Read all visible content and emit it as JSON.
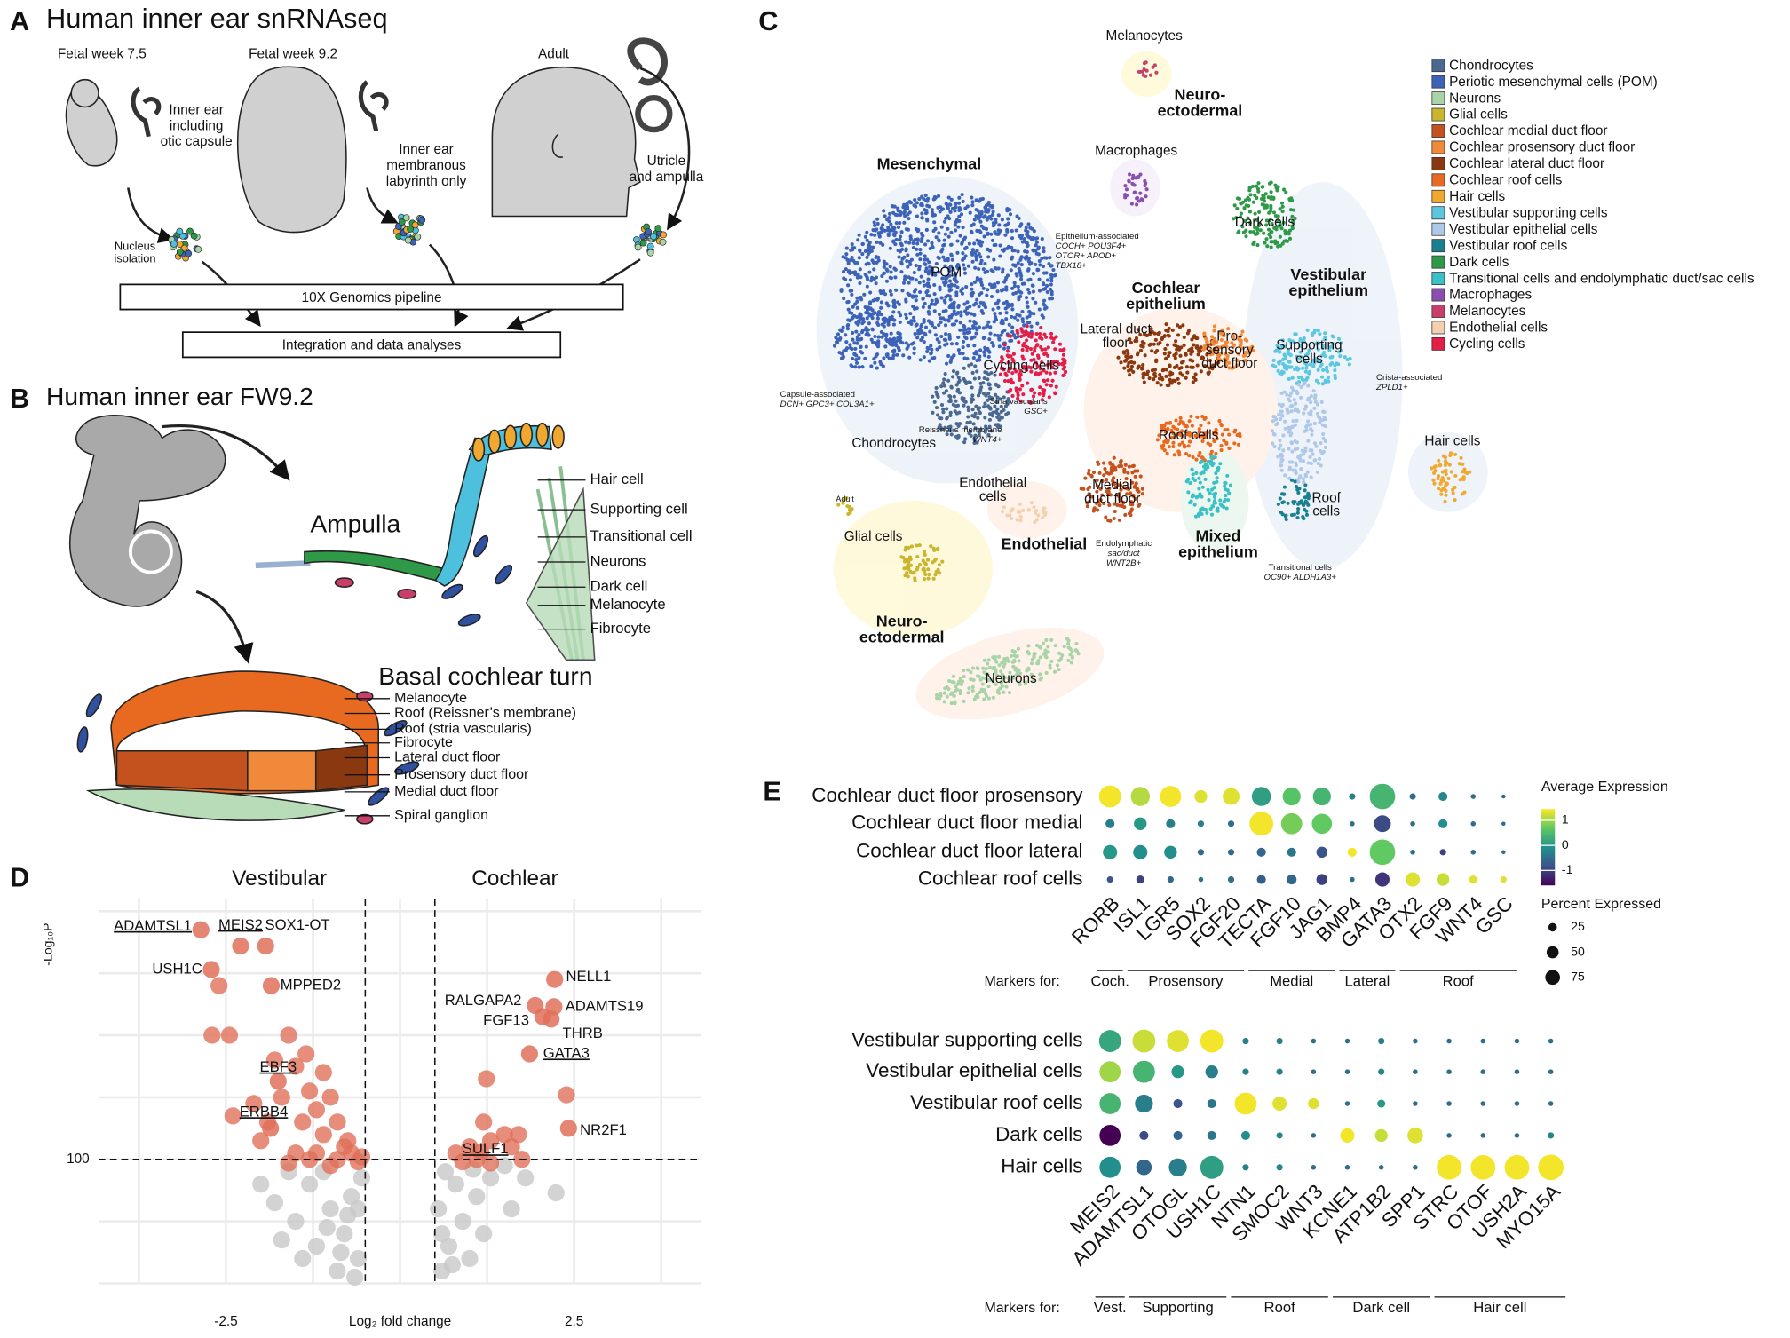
{
  "panel_a": {
    "letter": "A",
    "title": "Human inner ear snRNAseq",
    "stages": [
      "Fetal week 7.5",
      "Fetal week 9.2",
      "Adult"
    ],
    "tissues": [
      [
        "Inner ear",
        "including",
        "otic capsule"
      ],
      [
        "Inner ear",
        "membranous",
        "labyrinth only"
      ],
      [
        "Utricle",
        "and ampulla"
      ]
    ],
    "nucleus": [
      "Nucleus",
      "isolation"
    ],
    "pipeline": "10X Genomics pipeline",
    "integration": "Integration and data analyses"
  },
  "panel_b": {
    "letter": "B",
    "title": "Human inner ear FW9.2",
    "ampulla": "Ampulla",
    "ampulla_labels": [
      "Hair cell",
      "Supporting cell",
      "Transitional cell",
      "Neurons",
      "Dark cell",
      "Melanocyte",
      "Fibrocyte"
    ],
    "cochlea": "Basal cochlear turn",
    "cochlea_labels": [
      "Melanocyte",
      "Roof (Reissner’s membrane)",
      "Roof (stria vascularis)",
      "Fibrocyte",
      "Lateral duct floor",
      "Prosensory duct floor",
      "Medial duct floor",
      "Spiral ganglion"
    ]
  },
  "panel_c": {
    "letter": "C",
    "legend": [
      {
        "name": "Chondrocytes",
        "color": "#4a6890"
      },
      {
        "name": "Periotic mesenchymal cells (POM)",
        "color": "#3d63b8"
      },
      {
        "name": "Neurons",
        "color": "#a8d4a8"
      },
      {
        "name": "Glial cells",
        "color": "#c9b52e"
      },
      {
        "name": "Cochlear medial duct floor",
        "color": "#c4521e"
      },
      {
        "name": "Cochlear prosensory duct floor",
        "color": "#f08a3a"
      },
      {
        "name": "Cochlear lateral duct floor",
        "color": "#8a3810"
      },
      {
        "name": "Cochlear roof cells",
        "color": "#e86a20"
      },
      {
        "name": "Hair cells",
        "color": "#f0a830"
      },
      {
        "name": "Vestibular supporting cells",
        "color": "#5cc8e0"
      },
      {
        "name": "Vestibular epithelial cells",
        "color": "#b0c8e8"
      },
      {
        "name": "Vestibular roof cells",
        "color": "#1a8090"
      },
      {
        "name": "Dark cells",
        "color": "#2e9a48"
      },
      {
        "name": "Transitional cells and endolymphatic duct/sac cells",
        "color": "#3cc0c8"
      },
      {
        "name": "Macrophages",
        "color": "#8a4eb0"
      },
      {
        "name": "Melanocytes",
        "color": "#c8406a"
      },
      {
        "name": "Endothelial cells",
        "color": "#f4d0b0"
      },
      {
        "name": "Cycling cells",
        "color": "#e41e46"
      }
    ],
    "regions": [
      [
        "Mesenchymal"
      ],
      [
        "Cochlear",
        "epithelium"
      ],
      [
        "Vestibular",
        "epithelium"
      ],
      [
        "Neuro-",
        "ectodermal"
      ],
      [
        "Endothelial"
      ],
      [
        "Mixed",
        "epithelium"
      ],
      [
        "Neuro-",
        "ectodermal"
      ]
    ],
    "clusters": [
      [
        "Melanocytes"
      ],
      [
        "Macrophages"
      ],
      [
        "POM"
      ],
      [
        "Cycling cells"
      ],
      [
        "Chondrocytes"
      ],
      [
        "Lateral duct",
        "floor"
      ],
      [
        "Pro-",
        "sensory",
        "duct floor"
      ],
      [
        "Supporting",
        "cells"
      ],
      [
        "Dark cells"
      ],
      [
        "Roof cells"
      ],
      [
        "Medial",
        "duct floor"
      ],
      [
        "Roof",
        "cells"
      ],
      [
        "Hair cells"
      ],
      [
        "Endothelial",
        "cells"
      ],
      [
        "Glial cells"
      ],
      [
        "Neurons"
      ],
      [
        "Adult"
      ]
    ],
    "annotations": [
      [
        "Epithelium-associated",
        "COCH+ POU3F4+",
        "OTOR+ APOD+",
        "TBX18+"
      ],
      [
        "Capsule-associated",
        "DCN+ GPC3+ COL3A1+"
      ],
      [
        "Stria vascularis",
        "GSC+"
      ],
      [
        "Reissner’s membrane",
        "WNT4+"
      ],
      [
        "Endolymphatic",
        "sac/duct",
        "WNT2B+"
      ],
      [
        "Transitional cells",
        "OC90+ ALDH1A3+"
      ],
      [
        "Crista-associated",
        "ZPLD1+"
      ]
    ]
  },
  "chart_data": [
    {
      "type": "scatter",
      "letter": "D",
      "groups": [
        "Vestibular",
        "Cochlear"
      ],
      "xlabel": "Log₂ fold change",
      "ylabel": "-Log₁₀P",
      "xlim": [
        -4.33,
        4.33
      ],
      "ylim": [
        0,
        310
      ],
      "xticks": [
        -2.5,
        2.5
      ],
      "yticks": [
        100
      ],
      "xgrid": [
        -3.75,
        -2.5,
        -1.25,
        0,
        1.25,
        2.5,
        3.75
      ],
      "ygrid": [
        0,
        50,
        100,
        150,
        200,
        250,
        300
      ],
      "thresholds": {
        "x": [
          -0.5,
          0.5
        ],
        "y": 100
      },
      "not_significant": {
        "color": "#c8c8c8",
        "x": [
          -0.6,
          -0.8,
          -1.0,
          -1.3,
          -1.6,
          -0.7,
          -0.9,
          -1.2,
          -1.5,
          -1.8,
          -0.55,
          -1.1,
          -1.4,
          -1.7,
          -2.0,
          -0.65,
          -0.75,
          -1.05,
          -0.6,
          -0.85,
          0.6,
          0.7,
          0.9,
          1.1,
          1.3,
          1.5,
          0.55,
          0.8,
          1.0,
          1.2,
          1.6,
          2.24,
          1.8,
          0.65,
          0.75,
          1.05,
          0.6
        ],
        "y": [
          20,
          40,
          60,
          80,
          90,
          70,
          10,
          30,
          50,
          65,
          85,
          90,
          20,
          35,
          80,
          5,
          55,
          45,
          60,
          25,
          10,
          30,
          50,
          70,
          85,
          95,
          60,
          80,
          20,
          40,
          60,
          73,
          85,
          90,
          15,
          92,
          40
        ]
      },
      "significant": {
        "color": "#e0705a",
        "x": [
          -2.6,
          -2.45,
          -2.7,
          -1.8,
          -1.6,
          -1.5,
          -1.3,
          -1.2,
          -1.0,
          -0.9,
          -1.1,
          -1.4,
          -0.8,
          -0.7,
          -0.9,
          -1.2,
          -1.5,
          -1.9,
          -2.1,
          -1.0,
          -0.6,
          -0.55,
          -1.3,
          -1.6,
          -2.0,
          -2.4,
          -1.7,
          -0.75,
          -1.1,
          -1.35,
          1.0,
          1.1,
          1.3,
          1.5,
          0.8,
          0.9,
          1.3,
          1.6,
          1.75,
          1.2,
          1.7,
          1.24,
          2.39
        ],
        "y": [
          240,
          200,
          200,
          180,
          200,
          175,
          155,
          140,
          150,
          130,
          120,
          130,
          110,
          105,
          100,
          105,
          105,
          130,
          145,
          95,
          98,
          102,
          100,
          97,
          115,
          135,
          150,
          115,
          170,
          185,
          110,
          100,
          115,
          120,
          105,
          98,
          97,
          110,
          100,
          130,
          120,
          165,
          152
        ]
      },
      "labeled": [
        {
          "gene": "ADAMTSL1",
          "x": -2.86,
          "y": 285
        },
        {
          "gene": "MEIS2",
          "x": -2.29,
          "y": 272
        },
        {
          "gene": "SOX1-OT",
          "x": -1.93,
          "y": 272
        },
        {
          "gene": "USH1C",
          "x": -2.71,
          "y": 253
        },
        {
          "gene": "MPPED2",
          "x": -1.85,
          "y": 240
        },
        {
          "gene": "EBF3",
          "x": -1.75,
          "y": 163
        },
        {
          "gene": "ERBB4",
          "x": -1.86,
          "y": 125
        },
        {
          "gene": "NELL1",
          "x": 2.22,
          "y": 245
        },
        {
          "gene": "RALGAPA2",
          "x": 1.94,
          "y": 224
        },
        {
          "gene": "ADAMTS19",
          "x": 2.21,
          "y": 223
        },
        {
          "gene": "FGF13",
          "x": 2.05,
          "y": 215
        },
        {
          "gene": "THRB",
          "x": 2.17,
          "y": 213
        },
        {
          "gene": "GATA3",
          "x": 1.86,
          "y": 185
        },
        {
          "gene": "NR2F1",
          "x": 2.42,
          "y": 125
        },
        {
          "gene": "SULF1",
          "x": 1.16,
          "y": 106
        }
      ]
    },
    {
      "type": "dot",
      "letter": "E",
      "genes": [
        "RORB",
        "ISL1",
        "LGR5",
        "SOX2",
        "FGF20",
        "TECTA",
        "FGF10",
        "JAG1",
        "BMP4",
        "GATA3",
        "OTX2",
        "FGF9",
        "WNT4",
        "GSC"
      ],
      "rows": [
        {
          "name": "Cochlear duct floor prosensory",
          "expression": [
            1.4,
            1.1,
            1.4,
            1.3,
            1.3,
            0.1,
            0.6,
            0.4,
            -0.3,
            0.4,
            -0.5,
            -0.2,
            -0.5,
            -0.5
          ],
          "percent": [
            60,
            45,
            55,
            20,
            35,
            45,
            40,
            40,
            5,
            80,
            5,
            10,
            3,
            2
          ]
        },
        {
          "name": "Cochlear duct floor medial",
          "expression": [
            -0.3,
            0,
            -0.3,
            -0.3,
            -0.5,
            1.4,
            0.8,
            0.7,
            -0.5,
            -0.9,
            -0.5,
            -0.1,
            -0.5,
            -0.5
          ],
          "percent": [
            10,
            20,
            10,
            5,
            5,
            70,
            55,
            50,
            3,
            35,
            3,
            10,
            3,
            2
          ]
        },
        {
          "name": "Cochlear duct floor lateral",
          "expression": [
            0,
            -0.1,
            -0.1,
            -0.5,
            -0.5,
            -0.6,
            -0.4,
            -0.8,
            1.4,
            0.7,
            -0.5,
            -1,
            -0.5,
            -0.5
          ],
          "percent": [
            25,
            25,
            20,
            5,
            5,
            10,
            10,
            15,
            10,
            80,
            3,
            5,
            3,
            2
          ]
        },
        {
          "name": "Cochlear roof cells",
          "expression": [
            -0.8,
            -1,
            -0.6,
            -0.4,
            -0.5,
            -0.7,
            -0.6,
            -1,
            -0.5,
            -1.1,
            1.3,
            1.2,
            1.3,
            1.3
          ],
          "percent": [
            5,
            8,
            5,
            3,
            5,
            10,
            12,
            15,
            3,
            25,
            25,
            20,
            8,
            5
          ]
        }
      ],
      "markers_label": "Markers for:",
      "marker_groups": [
        "Coch.",
        "Prosensory",
        "Medial",
        "Lateral",
        "Roof"
      ],
      "color_legend": {
        "title": "Average Expression",
        "lim": [
          -1.6,
          1.45
        ],
        "ticks": [
          1,
          0,
          -1
        ]
      },
      "size_legend": {
        "title": "Percent Expressed",
        "ticks": [
          25,
          50,
          75
        ]
      }
    },
    {
      "type": "dot",
      "genes": [
        "MEIS2",
        "ADAMTSL1",
        "OTOGL",
        "USH1C",
        "NTN1",
        "SMOC2",
        "WNT3",
        "KCNE1",
        "ATP1B2",
        "SPP1",
        "STRC",
        "OTOF",
        "USH2A",
        "MYO15A"
      ],
      "rows": [
        {
          "name": "Vestibular supporting cells",
          "expression": [
            0.2,
            1.2,
            1.3,
            1.4,
            -0.3,
            -0.3,
            -0.5,
            -0.5,
            -0.3,
            -0.5,
            -0.5,
            -0.5,
            -0.5,
            -0.5
          ],
          "percent": [
            60,
            65,
            60,
            65,
            5,
            5,
            3,
            3,
            5,
            3,
            3,
            3,
            3,
            3
          ]
        },
        {
          "name": "Vestibular epithelial cells",
          "expression": [
            1.0,
            0.4,
            0,
            -0.3,
            -0.3,
            -0.3,
            -0.5,
            -0.5,
            -0.2,
            -0.5,
            -0.5,
            -0.5,
            -0.5,
            -0.5
          ],
          "percent": [
            55,
            60,
            20,
            20,
            5,
            5,
            3,
            3,
            5,
            3,
            3,
            3,
            3,
            3
          ]
        },
        {
          "name": "Vestibular roof cells",
          "expression": [
            0.4,
            -0.3,
            -0.8,
            -0.4,
            1.4,
            1.3,
            1.3,
            -0.5,
            0,
            -0.5,
            -0.5,
            -0.5,
            -0.5,
            -0.5
          ],
          "percent": [
            55,
            40,
            10,
            10,
            60,
            25,
            15,
            3,
            8,
            3,
            3,
            3,
            3,
            3
          ]
        },
        {
          "name": "Dark cells",
          "expression": [
            -1.6,
            -0.9,
            -0.6,
            -0.4,
            -0.1,
            -0.2,
            -0.5,
            1.4,
            1.2,
            1.3,
            -0.5,
            -0.5,
            -0.5,
            -0.2
          ],
          "percent": [
            55,
            10,
            10,
            10,
            10,
            5,
            3,
            25,
            20,
            30,
            3,
            3,
            3,
            5
          ]
        },
        {
          "name": "Hair cells",
          "expression": [
            -0.1,
            -0.6,
            -0.3,
            0.1,
            -0.3,
            -0.2,
            -0.5,
            -0.5,
            -0.5,
            -0.5,
            1.4,
            1.4,
            1.4,
            1.4
          ],
          "percent": [
            55,
            30,
            40,
            65,
            5,
            5,
            3,
            3,
            3,
            3,
            75,
            75,
            75,
            80
          ]
        }
      ],
      "markers_label": "Markers for:",
      "marker_groups": [
        "Vest.",
        "Supporting",
        "Roof",
        "Dark cell",
        "Hair cell"
      ]
    }
  ]
}
